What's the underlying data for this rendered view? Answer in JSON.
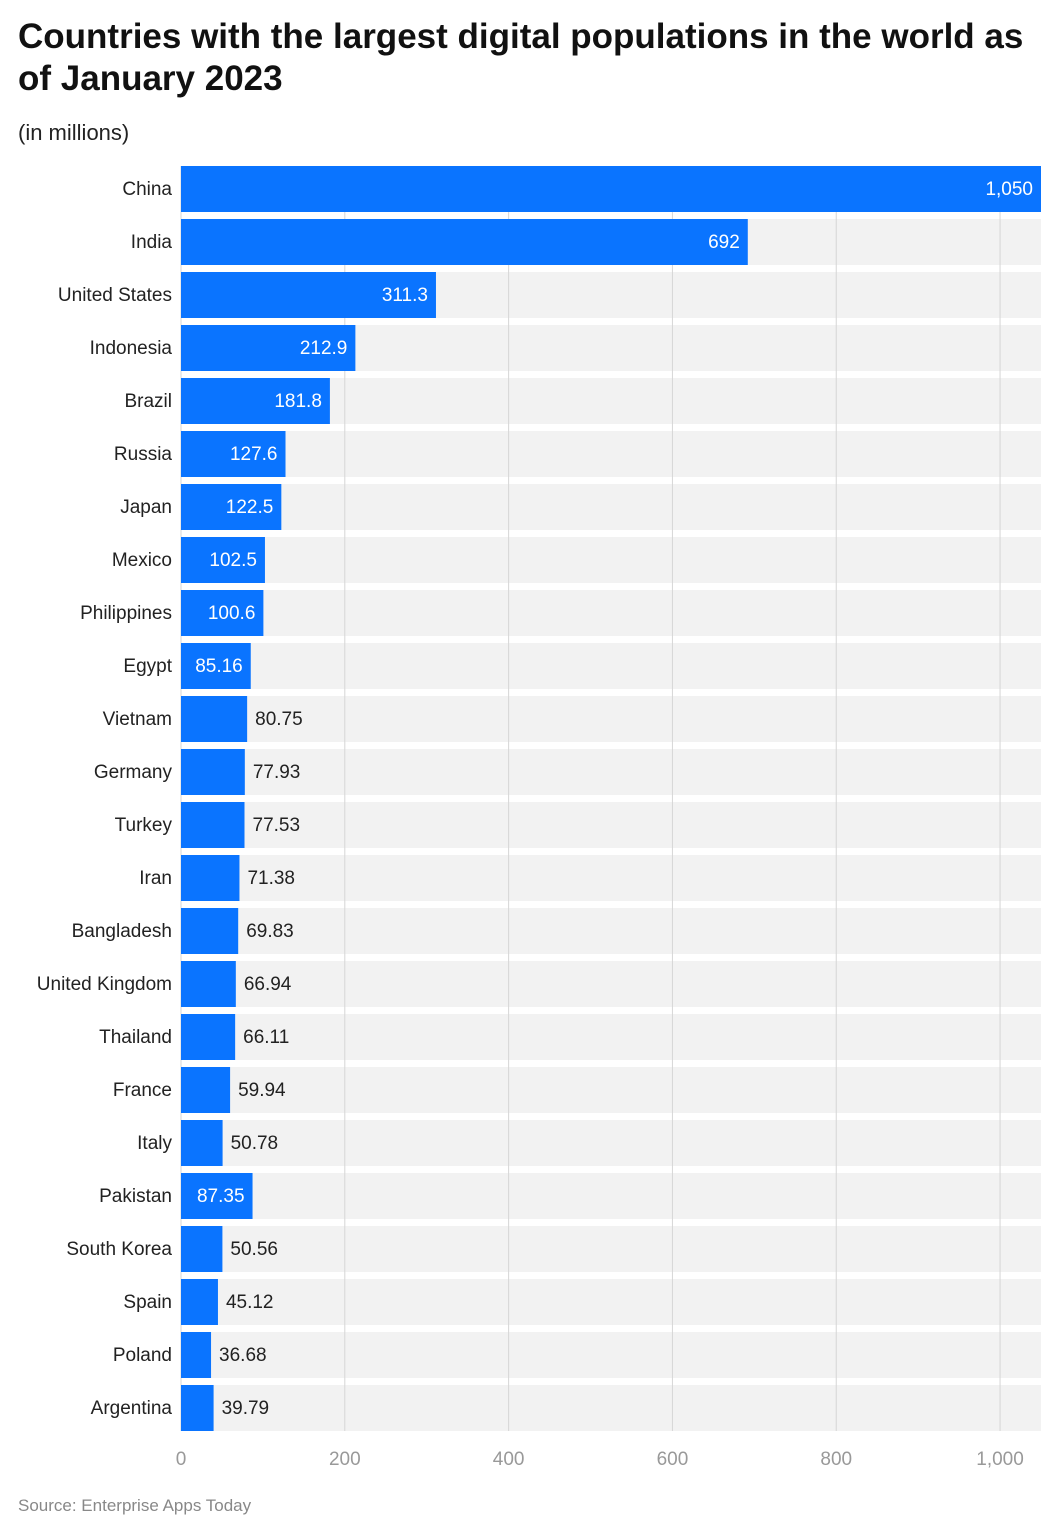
{
  "chart_data": {
    "type": "bar",
    "orientation": "horizontal",
    "title": "Countries with the largest digital populations in the world as of January 2023",
    "subtitle": "(in millions)",
    "source": "Source: Enterprise Apps Today",
    "categories": [
      "China",
      "India",
      "United States",
      "Indonesia",
      "Brazil",
      "Russia",
      "Japan",
      "Mexico",
      "Philippines",
      "Egypt",
      "Vietnam",
      "Germany",
      "Turkey",
      "Iran",
      "Bangladesh",
      "United Kingdom",
      "Thailand",
      "France",
      "Italy",
      "Pakistan",
      "South Korea",
      "Spain",
      "Poland",
      "Argentina"
    ],
    "values": [
      1050,
      692,
      311.3,
      212.9,
      181.8,
      127.6,
      122.5,
      102.5,
      100.6,
      85.16,
      80.75,
      77.93,
      77.53,
      71.38,
      69.83,
      66.94,
      66.11,
      59.94,
      50.78,
      87.35,
      50.56,
      45.12,
      36.68,
      39.79
    ],
    "value_labels": [
      "1,050",
      "692",
      "311.3",
      "212.9",
      "181.8",
      "127.6",
      "122.5",
      "102.5",
      "100.6",
      "85.16",
      "80.75",
      "77.93",
      "77.53",
      "71.38",
      "69.83",
      "66.94",
      "66.11",
      "59.94",
      "50.78",
      "87.35",
      "50.56",
      "45.12",
      "36.68",
      "39.79"
    ],
    "color": "#0a74ff",
    "xlim": [
      0,
      1050
    ],
    "xticks": [
      0,
      200,
      400,
      600,
      800,
      {
        "value": 1000,
        "label": "1,000"
      }
    ],
    "grid": true
  }
}
